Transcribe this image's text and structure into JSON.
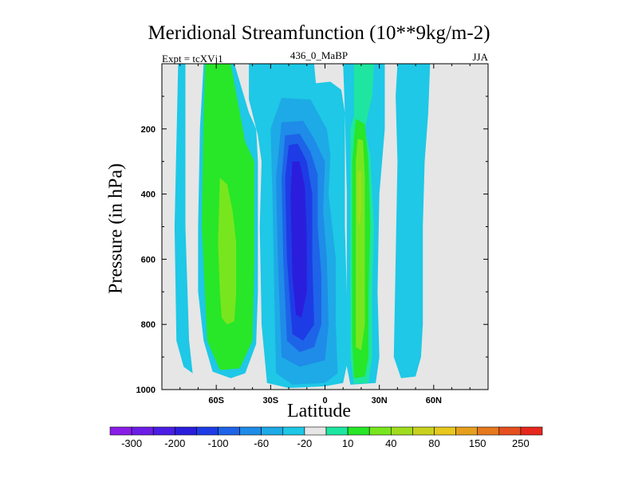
{
  "chart_data": {
    "type": "contour",
    "title": "Meridional Streamfunction (10**9kg/m-2)",
    "subtitle_left": "Expt = tcXVj1",
    "subtitle_center": "436_0_MaBP",
    "subtitle_right": "JJA",
    "xlabel": "Latitude",
    "ylabel": "Pressure (in hPa)",
    "xlim": [
      -90,
      90
    ],
    "ylim": [
      1000,
      0
    ],
    "x_ticks": [
      {
        "value": -60,
        "label": "60S"
      },
      {
        "value": -30,
        "label": "30S"
      },
      {
        "value": 0,
        "label": "0"
      },
      {
        "value": 30,
        "label": "30N"
      },
      {
        "value": 60,
        "label": "60N"
      }
    ],
    "y_ticks": [
      {
        "value": 200,
        "label": "200"
      },
      {
        "value": 400,
        "label": "400"
      },
      {
        "value": 600,
        "label": "600"
      },
      {
        "value": 800,
        "label": "800"
      },
      {
        "value": 1000,
        "label": "1000"
      }
    ],
    "background_color": "#e6e6e6",
    "colorbar": {
      "labels": [
        "-300",
        "-200",
        "-100",
        "-60",
        "-20",
        "10",
        "40",
        "80",
        "150",
        "250"
      ],
      "colors": [
        "#8a1ee8",
        "#6c1ee6",
        "#4a1ee4",
        "#2a1edc",
        "#1e3ce6",
        "#1e64e8",
        "#1e8ce8",
        "#1eaae6",
        "#1ec8e6",
        "#e6e6e6",
        "#1ee6a0",
        "#28e628",
        "#78e61e",
        "#a0dc1e",
        "#c8d21e",
        "#e6c81e",
        "#e6a01e",
        "#e6781e",
        "#e6501e",
        "#e6281e"
      ]
    },
    "cells": [
      {
        "name": "cell-60S-band",
        "level": 10,
        "color": "#1ec8e6",
        "poly": [
          [
            -81,
            0
          ],
          [
            -77,
            0
          ],
          [
            -77,
            500
          ],
          [
            -75,
            850
          ],
          [
            -73,
            950
          ],
          [
            -78,
            930
          ],
          [
            -82,
            850
          ],
          [
            -83,
            500
          ]
        ]
      },
      {
        "name": "cell-45S-outer",
        "level": 10,
        "color": "#1ec8e6",
        "poly": [
          [
            -67,
            0
          ],
          [
            -50,
            0
          ],
          [
            -42,
            150
          ],
          [
            -38,
            200
          ],
          [
            -37,
            300
          ],
          [
            -37,
            700
          ],
          [
            -38,
            860
          ],
          [
            -44,
            950
          ],
          [
            -52,
            965
          ],
          [
            -62,
            945
          ],
          [
            -67,
            850
          ],
          [
            -70,
            700
          ],
          [
            -70,
            500
          ],
          [
            -69,
            200
          ]
        ]
      },
      {
        "name": "cell-45S-mid",
        "level": 20,
        "color": "#28e628",
        "poly": [
          [
            -66,
            0
          ],
          [
            -52,
            0
          ],
          [
            -47,
            150
          ],
          [
            -44,
            240
          ],
          [
            -39,
            300
          ],
          [
            -39,
            600
          ],
          [
            -40,
            850
          ],
          [
            -47,
            935
          ],
          [
            -58,
            940
          ],
          [
            -65,
            850
          ],
          [
            -68,
            500
          ],
          [
            -67,
            150
          ]
        ]
      },
      {
        "name": "cell-45S-inner",
        "level": 40,
        "color": "#78e61e",
        "poly": [
          [
            -58,
            350
          ],
          [
            -54,
            370
          ],
          [
            -51,
            450
          ],
          [
            -49,
            550
          ],
          [
            -49,
            700
          ],
          [
            -50,
            790
          ],
          [
            -54,
            800
          ],
          [
            -57,
            780
          ],
          [
            -58,
            700
          ],
          [
            -59,
            550
          ]
        ]
      },
      {
        "name": "cell-eq-outer",
        "level": -5,
        "color": "#1ec8e6",
        "poly": [
          [
            -42,
            0
          ],
          [
            -6,
            0
          ],
          [
            -5,
            60
          ],
          [
            3,
            55
          ],
          [
            9,
            80
          ],
          [
            11,
            150
          ],
          [
            11,
            500
          ],
          [
            12,
            700
          ],
          [
            13,
            900
          ],
          [
            10,
            980
          ],
          [
            0,
            990
          ],
          [
            -20,
            995
          ],
          [
            -32,
            980
          ],
          [
            -35,
            800
          ],
          [
            -36,
            500
          ],
          [
            -35,
            300
          ],
          [
            -37,
            220
          ],
          [
            -42,
            110
          ]
        ]
      },
      {
        "name": "cell-eq-a",
        "level": -10,
        "color": "#1eaae6",
        "poly": [
          [
            -24,
            105
          ],
          [
            -8,
            110
          ],
          [
            -4,
            150
          ],
          [
            0,
            190
          ],
          [
            1,
            200
          ],
          [
            3,
            280
          ],
          [
            2,
            400
          ],
          [
            4,
            500
          ],
          [
            6,
            600
          ],
          [
            6,
            800
          ],
          [
            7,
            950
          ],
          [
            0,
            980
          ],
          [
            -18,
            985
          ],
          [
            -27,
            950
          ],
          [
            -28,
            700
          ],
          [
            -29,
            400
          ],
          [
            -30,
            200
          ]
        ]
      },
      {
        "name": "cell-eq-b",
        "level": -20,
        "color": "#1e8ce8",
        "poly": [
          [
            -24,
            180
          ],
          [
            -12,
            175
          ],
          [
            -6,
            230
          ],
          [
            0,
            300
          ],
          [
            -1,
            450
          ],
          [
            1,
            600
          ],
          [
            2,
            800
          ],
          [
            0,
            910
          ],
          [
            -14,
            930
          ],
          [
            -24,
            900
          ],
          [
            -26,
            600
          ],
          [
            -27,
            350
          ]
        ]
      },
      {
        "name": "cell-eq-c",
        "level": -40,
        "color": "#1e64e8",
        "poly": [
          [
            -22,
            220
          ],
          [
            -14,
            215
          ],
          [
            -8,
            270
          ],
          [
            -4,
            340
          ],
          [
            -4,
            500
          ],
          [
            -2,
            650
          ],
          [
            -2,
            800
          ],
          [
            -6,
            870
          ],
          [
            -14,
            885
          ],
          [
            -21,
            850
          ],
          [
            -23,
            600
          ],
          [
            -24,
            350
          ]
        ]
      },
      {
        "name": "cell-eq-d",
        "level": -60,
        "color": "#1e3ce6",
        "poly": [
          [
            -20,
            250
          ],
          [
            -15,
            245
          ],
          [
            -10,
            300
          ],
          [
            -7,
            400
          ],
          [
            -7,
            600
          ],
          [
            -6,
            800
          ],
          [
            -12,
            850
          ],
          [
            -18,
            830
          ],
          [
            -21,
            600
          ],
          [
            -22,
            350
          ]
        ]
      },
      {
        "name": "cell-eq-e",
        "level": -80,
        "color": "#2a1edc",
        "poly": [
          [
            -18,
            300
          ],
          [
            -14,
            300
          ],
          [
            -11,
            380
          ],
          [
            -10,
            550
          ],
          [
            -10,
            700
          ],
          [
            -13,
            780
          ],
          [
            -16,
            770
          ],
          [
            -18,
            650
          ],
          [
            -19,
            400
          ]
        ]
      },
      {
        "name": "cell-30N-outer",
        "level": 10,
        "color": "#1ec8e6",
        "poly": [
          [
            10,
            0
          ],
          [
            33,
            0
          ],
          [
            33,
            200
          ],
          [
            30,
            400
          ],
          [
            29,
            700
          ],
          [
            30,
            900
          ],
          [
            28,
            980
          ],
          [
            14,
            985
          ],
          [
            11,
            900
          ],
          [
            12,
            700
          ],
          [
            12,
            400
          ],
          [
            11,
            150
          ]
        ]
      },
      {
        "name": "cell-30N-band",
        "level": 10,
        "color": "#1ee6a0",
        "poly": [
          [
            16,
            0
          ],
          [
            27,
            0
          ],
          [
            26,
            100
          ],
          [
            24,
            150
          ],
          [
            22,
            200
          ],
          [
            25,
            280
          ],
          [
            27,
            500
          ],
          [
            26,
            700
          ],
          [
            26,
            900
          ],
          [
            24,
            980
          ],
          [
            16,
            982
          ],
          [
            14,
            900
          ],
          [
            14,
            700
          ],
          [
            14,
            400
          ],
          [
            14,
            200
          ],
          [
            16,
            160
          ]
        ]
      },
      {
        "name": "cell-30N-mid",
        "level": 20,
        "color": "#28e628",
        "poly": [
          [
            17,
            170
          ],
          [
            22,
            185
          ],
          [
            24,
            300
          ],
          [
            25,
            500
          ],
          [
            24,
            700
          ],
          [
            24,
            900
          ],
          [
            22,
            960
          ],
          [
            16,
            965
          ],
          [
            15,
            850
          ],
          [
            15,
            600
          ],
          [
            15,
            300
          ]
        ]
      },
      {
        "name": "cell-30N-inner",
        "level": 40,
        "color": "#78e61e",
        "poly": [
          [
            18,
            230
          ],
          [
            21,
            235
          ],
          [
            22,
            350
          ],
          [
            22,
            600
          ],
          [
            22,
            800
          ],
          [
            20,
            880
          ],
          [
            17,
            870
          ],
          [
            17,
            600
          ],
          [
            17,
            300
          ]
        ]
      },
      {
        "name": "cell-30N-core",
        "level": 80,
        "color": "#a0dc1e",
        "poly": [
          [
            18,
            330
          ],
          [
            20,
            330
          ],
          [
            20,
            450
          ],
          [
            19,
            500
          ],
          [
            18,
            480
          ]
        ]
      },
      {
        "name": "cell-45N-band",
        "level": 10,
        "color": "#1ec8e6",
        "poly": [
          [
            40,
            0
          ],
          [
            58,
            0
          ],
          [
            57,
            150
          ],
          [
            55,
            300
          ],
          [
            54,
            500
          ],
          [
            54,
            800
          ],
          [
            53,
            900
          ],
          [
            50,
            960
          ],
          [
            42,
            965
          ],
          [
            38,
            900
          ],
          [
            39,
            600
          ],
          [
            40,
            300
          ],
          [
            39,
            100
          ]
        ]
      }
    ]
  }
}
